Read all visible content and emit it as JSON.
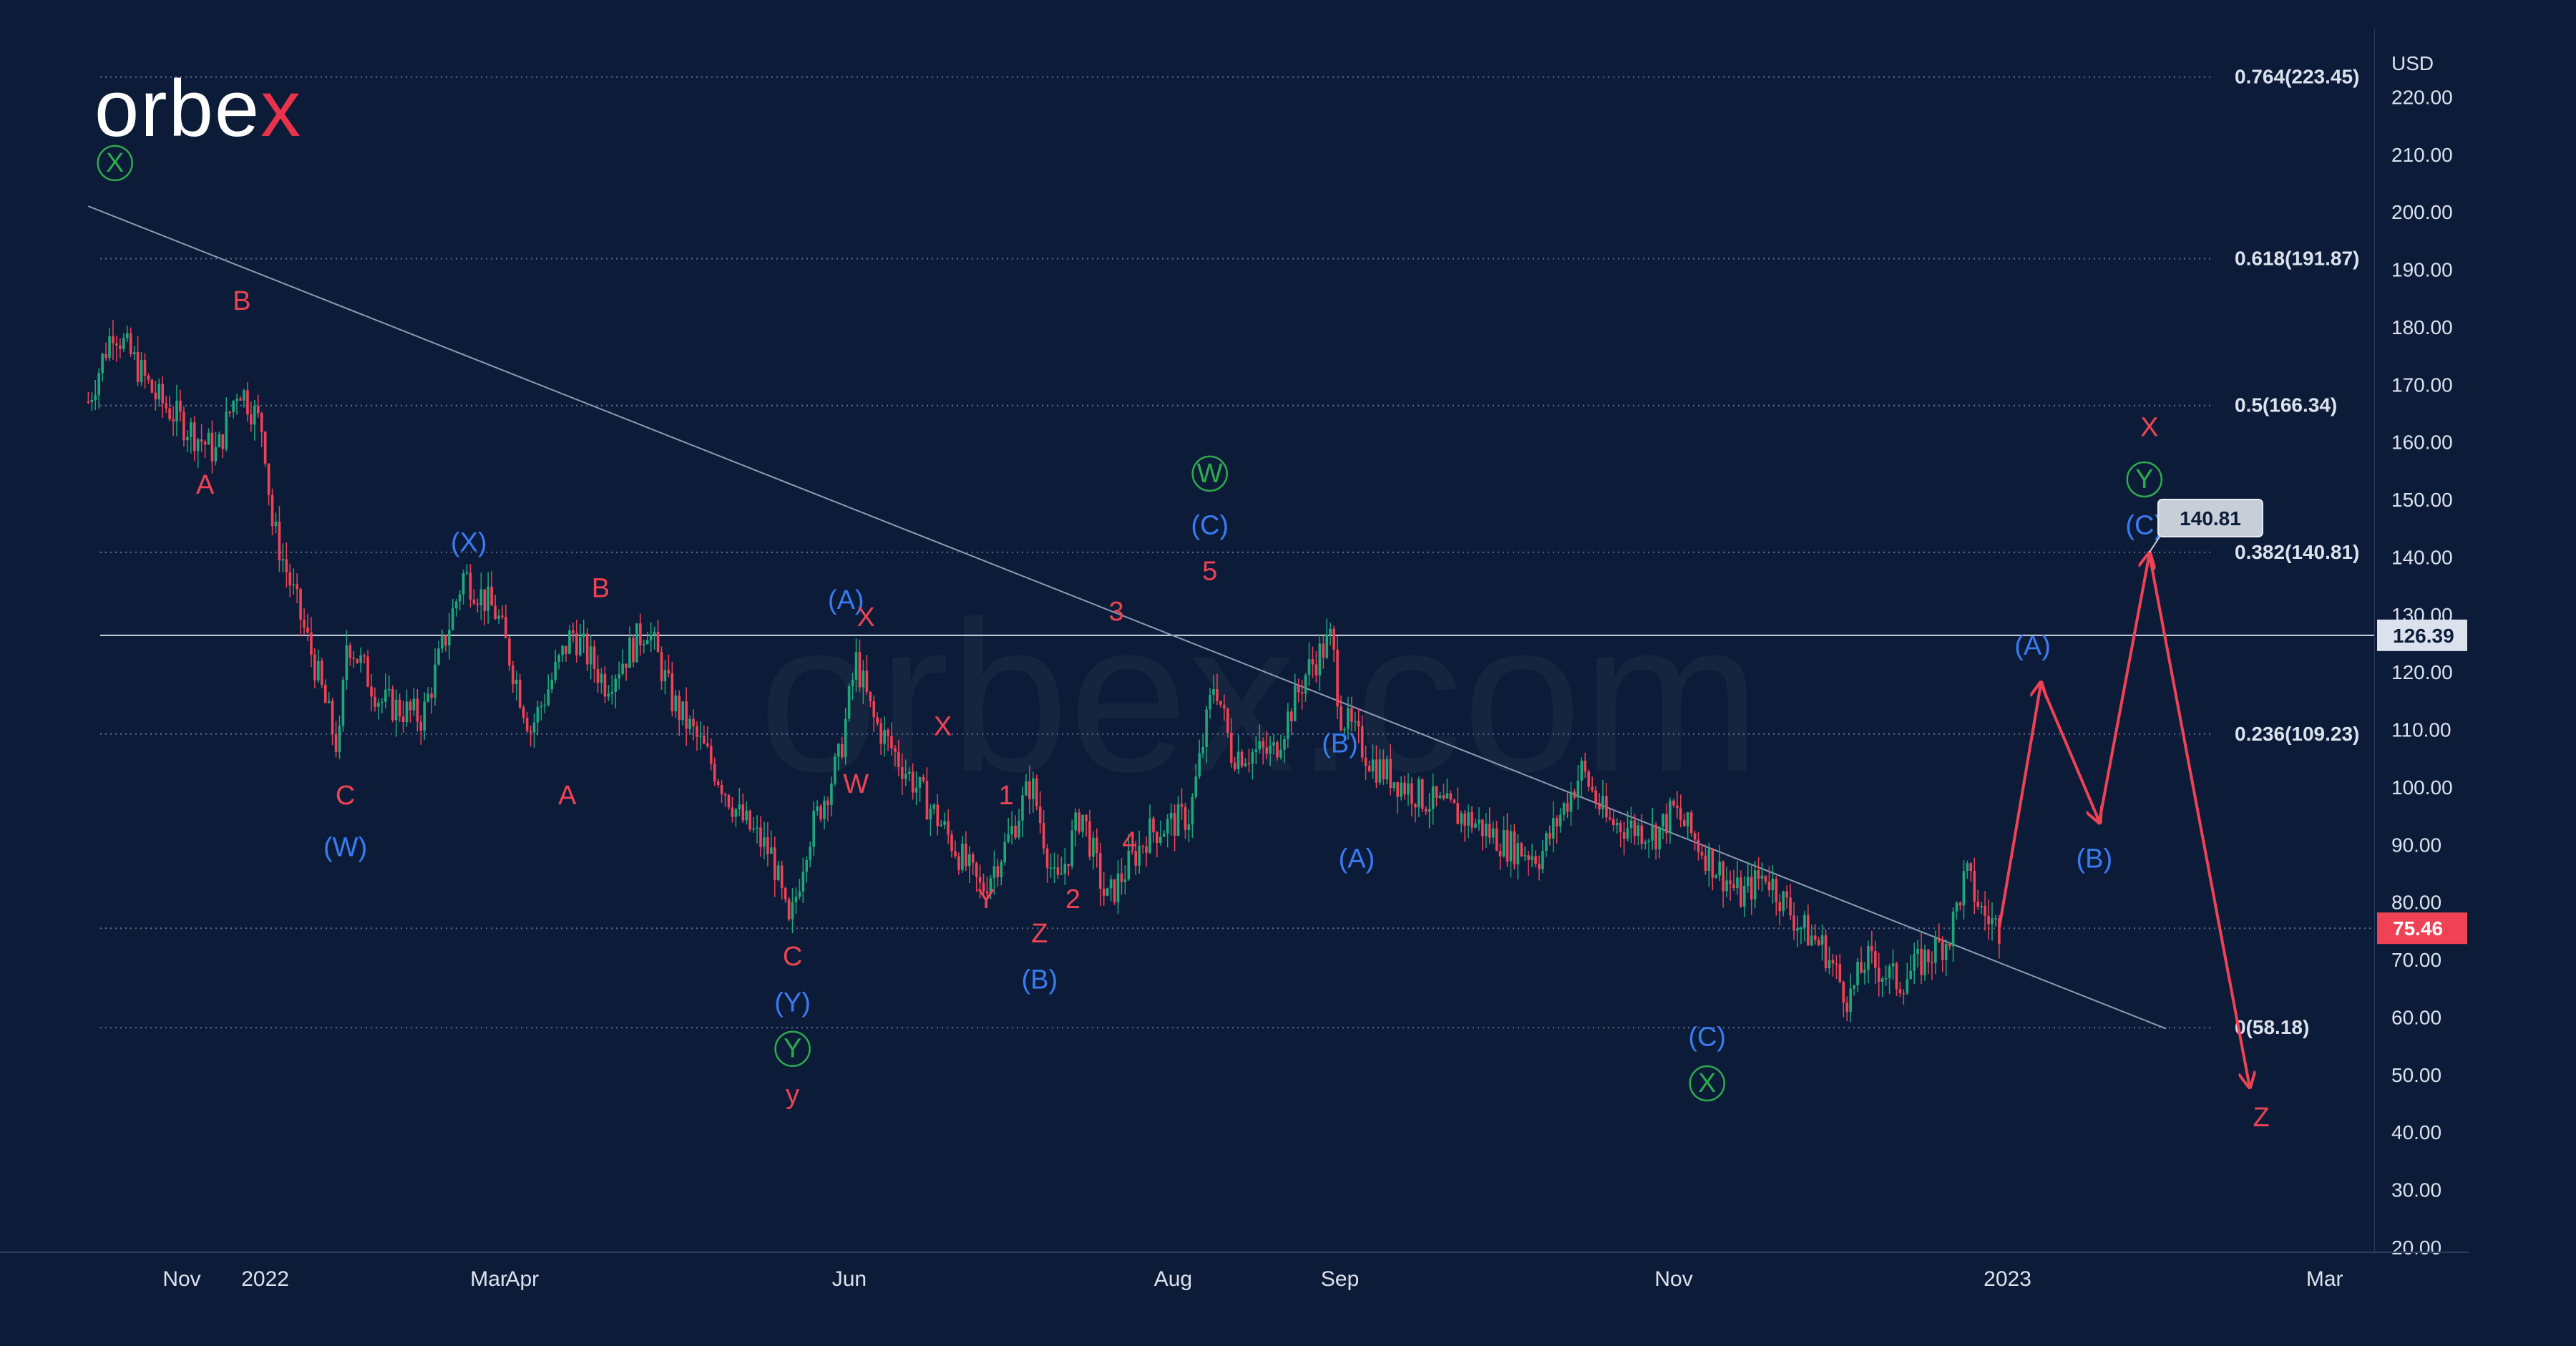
{
  "brand": {
    "name_left": "orbe",
    "name_x": "x",
    "watermark": "orbex.com"
  },
  "colors": {
    "bg": "#0c1c38",
    "red": "#ef4254",
    "blue": "#3a7bf2",
    "green": "#2eaa4e",
    "grid": "#2a3b5c",
    "text": "#dbe2ee"
  },
  "chart_data": {
    "type": "candlestick",
    "currency": "USD",
    "ylim": [
      20,
      230
    ],
    "yticks": [
      "220.00",
      "210.00",
      "200.00",
      "190.00",
      "180.00",
      "170.00",
      "160.00",
      "150.00",
      "140.00",
      "130.00",
      "120.00",
      "110.00",
      "100.00",
      "90.00",
      "80.00",
      "70.00",
      "60.00",
      "50.00",
      "40.00",
      "30.00",
      "20.00"
    ],
    "yticks_values": [
      220,
      210,
      200,
      190,
      180,
      170,
      160,
      150,
      140,
      130,
      120,
      110,
      100,
      90,
      80,
      70,
      60,
      50,
      40,
      30,
      20
    ],
    "xticks": [
      {
        "label": "Nov",
        "t": 0.06
      },
      {
        "label": "2022",
        "t": 0.56
      },
      {
        "label": "Mar",
        "t": 1.9
      },
      {
        "label": "Apr",
        "t": 2.1
      },
      {
        "label": "Jun",
        "t": 4.06
      },
      {
        "label": "Aug",
        "t": 6.0
      },
      {
        "label": "Sep",
        "t": 7.0
      },
      {
        "label": "Nov",
        "t": 9.0
      },
      {
        "label": "2023",
        "t": 11.0
      },
      {
        "label": "Mar",
        "t": 12.9
      }
    ],
    "fib_levels": [
      {
        "label": "0.764(223.45)",
        "value": 223.45
      },
      {
        "label": "0.618(191.87)",
        "value": 191.87
      },
      {
        "label": "0.5(166.34)",
        "value": 166.34
      },
      {
        "label": "0.382(140.81)",
        "value": 140.81
      },
      {
        "label": "0.236(109.23)",
        "value": 109.23
      },
      {
        "label": "0(58.18)",
        "value": 58.18
      }
    ],
    "price_lines": [
      {
        "label": "126.39",
        "value": 126.39,
        "style": "gray"
      },
      {
        "label": "75.46",
        "value": 75.46,
        "style": "red"
      }
    ],
    "callout": {
      "label": "140.81",
      "value": 140.81
    },
    "trendline": {
      "from": [
        -0.5,
        201
      ],
      "to": [
        11.95,
        58
      ]
    },
    "price_path": [
      [
        -0.5,
        167
      ],
      [
        -0.35,
        180
      ],
      [
        -0.1,
        168
      ],
      [
        0.15,
        161
      ],
      [
        0.27,
        158
      ],
      [
        0.4,
        170
      ],
      [
        0.55,
        162
      ],
      [
        0.6,
        146
      ],
      [
        0.85,
        122
      ],
      [
        1.0,
        106
      ],
      [
        1.05,
        126
      ],
      [
        1.25,
        115
      ],
      [
        1.5,
        112
      ],
      [
        1.75,
        137
      ],
      [
        1.95,
        130
      ],
      [
        2.15,
        110
      ],
      [
        2.4,
        127
      ],
      [
        2.6,
        118
      ],
      [
        2.85,
        128
      ],
      [
        3.0,
        115
      ],
      [
        3.2,
        106
      ],
      [
        3.4,
        95
      ],
      [
        3.6,
        88
      ],
      [
        3.7,
        75
      ],
      [
        3.8,
        90
      ],
      [
        4.0,
        105
      ],
      [
        4.1,
        122
      ],
      [
        4.2,
        112
      ],
      [
        4.35,
        105
      ],
      [
        4.6,
        94
      ],
      [
        4.85,
        82
      ],
      [
        5.0,
        90
      ],
      [
        5.15,
        101
      ],
      [
        5.3,
        82
      ],
      [
        5.45,
        96
      ],
      [
        5.6,
        80
      ],
      [
        5.85,
        92
      ],
      [
        6.1,
        95
      ],
      [
        6.25,
        119
      ],
      [
        6.35,
        106
      ],
      [
        6.6,
        106
      ],
      [
        6.8,
        120
      ],
      [
        6.95,
        126
      ],
      [
        7.0,
        113
      ],
      [
        7.2,
        104
      ],
      [
        7.5,
        98
      ],
      [
        7.8,
        94
      ],
      [
        8.0,
        90
      ],
      [
        8.2,
        88
      ],
      [
        8.45,
        103
      ],
      [
        8.6,
        94
      ],
      [
        8.9,
        92
      ],
      [
        9.0,
        96
      ],
      [
        9.2,
        88
      ],
      [
        9.4,
        81
      ],
      [
        9.55,
        85
      ],
      [
        9.75,
        76
      ],
      [
        9.9,
        72
      ],
      [
        10.05,
        63
      ],
      [
        10.15,
        70
      ],
      [
        10.35,
        66
      ],
      [
        10.5,
        70
      ],
      [
        10.65,
        74
      ],
      [
        10.75,
        85
      ],
      [
        10.85,
        78
      ],
      [
        10.95,
        75.46
      ]
    ],
    "projection": [
      [
        10.95,
        75.46
      ],
      [
        11.2,
        118
      ],
      [
        11.55,
        94
      ],
      [
        11.85,
        140.5
      ],
      [
        12.45,
        48
      ]
    ],
    "wave_labels": [
      {
        "text": "X",
        "t": -0.34,
        "v": 207,
        "c": "green",
        "circle": true
      },
      {
        "text": "B",
        "t": 0.42,
        "v": 183,
        "c": "red"
      },
      {
        "text": "A",
        "t": 0.2,
        "v": 151,
        "c": "red"
      },
      {
        "text": "C",
        "t": 1.04,
        "v": 97,
        "c": "red"
      },
      {
        "text": "(W)",
        "t": 1.04,
        "v": 88,
        "c": "blue"
      },
      {
        "text": "(X)",
        "t": 1.78,
        "v": 141,
        "c": "blue"
      },
      {
        "text": "B",
        "t": 2.57,
        "v": 133,
        "c": "red"
      },
      {
        "text": "A",
        "t": 2.37,
        "v": 97,
        "c": "red"
      },
      {
        "text": "C",
        "t": 3.72,
        "v": 69,
        "c": "red"
      },
      {
        "text": "(Y)",
        "t": 3.72,
        "v": 61,
        "c": "blue"
      },
      {
        "text": "Y",
        "t": 3.72,
        "v": 53,
        "c": "green",
        "circle": true
      },
      {
        "text": "y",
        "t": 3.72,
        "v": 45,
        "c": "red"
      },
      {
        "text": "(A)",
        "t": 4.04,
        "v": 131,
        "c": "blue"
      },
      {
        "text": "X",
        "t": 4.16,
        "v": 128,
        "c": "red"
      },
      {
        "text": "W",
        "t": 4.1,
        "v": 99,
        "c": "red"
      },
      {
        "text": "X",
        "t": 4.62,
        "v": 109,
        "c": "red"
      },
      {
        "text": "1",
        "t": 5.0,
        "v": 97,
        "c": "red"
      },
      {
        "text": "Y",
        "t": 4.88,
        "v": 79,
        "c": "red"
      },
      {
        "text": "Z",
        "t": 5.2,
        "v": 73,
        "c": "red"
      },
      {
        "text": "(B)",
        "t": 5.2,
        "v": 65,
        "c": "blue"
      },
      {
        "text": "2",
        "t": 5.4,
        "v": 79,
        "c": "red"
      },
      {
        "text": "3",
        "t": 5.66,
        "v": 129,
        "c": "red"
      },
      {
        "text": "4",
        "t": 5.74,
        "v": 89,
        "c": "red"
      },
      {
        "text": "5",
        "t": 6.22,
        "v": 136,
        "c": "red"
      },
      {
        "text": "(C)",
        "t": 6.22,
        "v": 144,
        "c": "blue"
      },
      {
        "text": "W",
        "t": 6.22,
        "v": 153,
        "c": "green",
        "circle": true
      },
      {
        "text": "(B)",
        "t": 7.0,
        "v": 106,
        "c": "blue"
      },
      {
        "text": "(A)",
        "t": 7.1,
        "v": 86,
        "c": "blue"
      },
      {
        "text": "(C)",
        "t": 9.2,
        "v": 55,
        "c": "blue"
      },
      {
        "text": "X",
        "t": 9.2,
        "v": 47,
        "c": "green",
        "circle": true
      },
      {
        "text": "(A)",
        "t": 11.15,
        "v": 123,
        "c": "blue"
      },
      {
        "text": "(B)",
        "t": 11.52,
        "v": 86,
        "c": "blue"
      },
      {
        "text": "(C)",
        "t": 11.82,
        "v": 144,
        "c": "blue"
      },
      {
        "text": "Y",
        "t": 11.82,
        "v": 152,
        "c": "green",
        "circle": true
      },
      {
        "text": "X",
        "t": 11.85,
        "v": 161,
        "c": "red"
      },
      {
        "text": "Z",
        "t": 12.52,
        "v": 41,
        "c": "red"
      }
    ]
  }
}
